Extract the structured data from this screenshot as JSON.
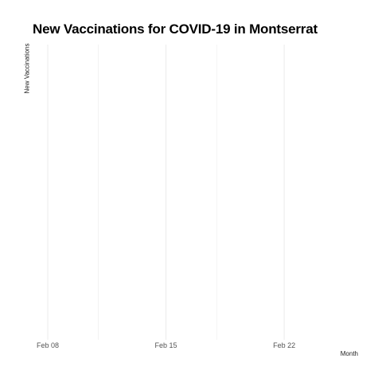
{
  "chart_data": {
    "type": "line",
    "title": "New Vaccinations for COVID-19 in Montserrat",
    "xlabel": "Month",
    "ylabel": "New Vaccinations",
    "x_ticks": [
      "Feb 08",
      "Feb 15",
      "Feb 22"
    ],
    "x_range": [
      "2021-02-08",
      "2021-02-26"
    ],
    "x_tick_dates": [
      "2021-02-08",
      "2021-02-15",
      "2021-02-22"
    ],
    "minor_tick_dates": [
      "2021-02-11",
      "2021-02-18"
    ],
    "series": [],
    "grid": true,
    "legend": "none",
    "gridline_color": "#ebebeb"
  }
}
